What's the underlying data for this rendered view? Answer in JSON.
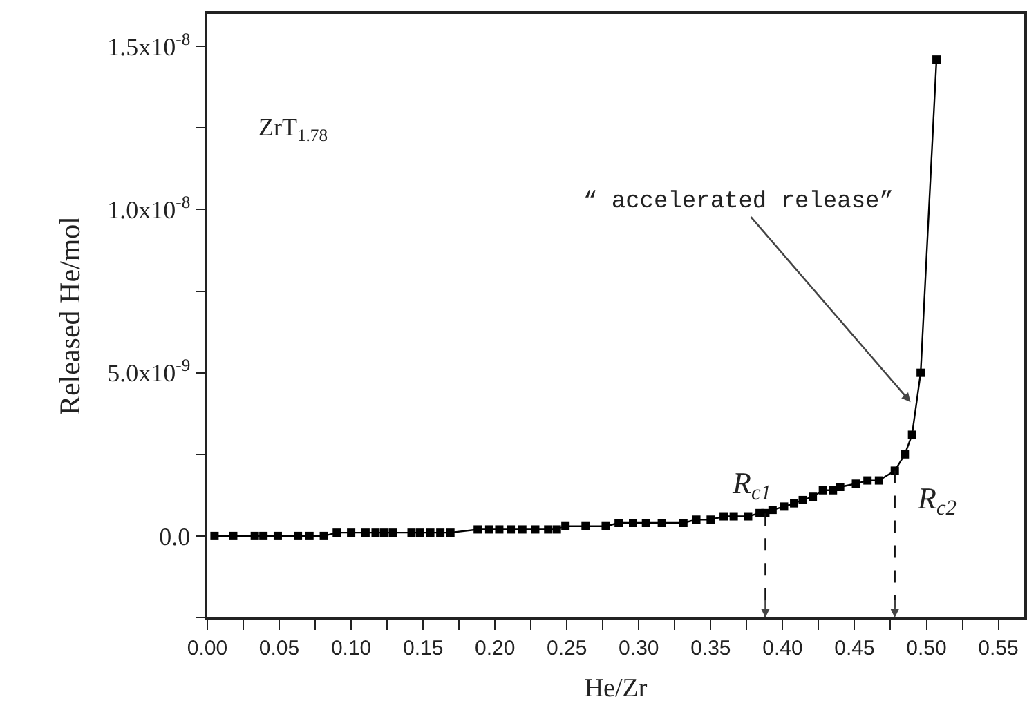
{
  "chart_data": {
    "type": "line",
    "xlabel": "He/Zr",
    "ylabel": "Released He/mol",
    "x": [
      0.005,
      0.018,
      0.033,
      0.039,
      0.049,
      0.063,
      0.071,
      0.081,
      0.09,
      0.1,
      0.11,
      0.117,
      0.123,
      0.129,
      0.142,
      0.148,
      0.155,
      0.162,
      0.169,
      0.188,
      0.196,
      0.203,
      0.211,
      0.219,
      0.228,
      0.237,
      0.243,
      0.249,
      0.263,
      0.277,
      0.286,
      0.296,
      0.305,
      0.316,
      0.331,
      0.34,
      0.35,
      0.359,
      0.366,
      0.376,
      0.384,
      0.388,
      0.393,
      0.401,
      0.408,
      0.414,
      0.421,
      0.428,
      0.435,
      0.44,
      0.451,
      0.459,
      0.467,
      0.478,
      0.485,
      0.49,
      0.496,
      0.507
    ],
    "series": [
      {
        "color": "#000000",
        "values": [
          0,
          0,
          0,
          0,
          0,
          0,
          0,
          0,
          1e-10,
          1e-10,
          1e-10,
          1e-10,
          1e-10,
          1e-10,
          1e-10,
          1e-10,
          1e-10,
          1e-10,
          1e-10,
          2e-10,
          2e-10,
          2e-10,
          2e-10,
          2e-10,
          2e-10,
          2e-10,
          2e-10,
          3e-10,
          3e-10,
          3e-10,
          4e-10,
          4e-10,
          4e-10,
          4e-10,
          4e-10,
          5e-10,
          5e-10,
          6e-10,
          6e-10,
          6e-10,
          7e-10,
          7e-10,
          8e-10,
          9e-10,
          1e-09,
          1.1e-09,
          1.2e-09,
          1.4e-09,
          1.4e-09,
          1.5e-09,
          1.6e-09,
          1.7e-09,
          1.7e-09,
          2e-09,
          2.5e-09,
          3.1e-09,
          5e-09,
          1.46e-08
        ]
      }
    ],
    "xlim": [
      0,
      0.568
    ],
    "xticks": [
      {
        "value": 0,
        "label": "0.00"
      },
      {
        "value": 0.025,
        "label": null
      },
      {
        "value": 0.05,
        "label": "0.05"
      },
      {
        "value": 0.075,
        "label": null
      },
      {
        "value": 0.1,
        "label": "0.10"
      },
      {
        "value": 0.125,
        "label": null
      },
      {
        "value": 0.15,
        "label": "0.15"
      },
      {
        "value": 0.175,
        "label": null
      },
      {
        "value": 0.2,
        "label": "0.20"
      },
      {
        "value": 0.225,
        "label": null
      },
      {
        "value": 0.25,
        "label": "0.25"
      },
      {
        "value": 0.275,
        "label": null
      },
      {
        "value": 0.3,
        "label": "0.30"
      },
      {
        "value": 0.325,
        "label": null
      },
      {
        "value": 0.35,
        "label": "0.35"
      },
      {
        "value": 0.375,
        "label": null
      },
      {
        "value": 0.4,
        "label": "0.40"
      },
      {
        "value": 0.425,
        "label": null
      },
      {
        "value": 0.45,
        "label": "0.45"
      },
      {
        "value": 0.475,
        "label": null
      },
      {
        "value": 0.5,
        "label": "0.50"
      },
      {
        "value": 0.525,
        "label": null
      },
      {
        "value": 0.55,
        "label": "0.55"
      }
    ],
    "ylim": [
      -2.5e-09,
      1.6e-08
    ],
    "yticks": [
      {
        "value": -2.5e-09,
        "label": null
      },
      {
        "value": 0,
        "label": "0.0"
      },
      {
        "value": 2.5e-09,
        "label": null
      },
      {
        "value": 5e-09,
        "label": "5.0x10$^{-9}$"
      },
      {
        "value": 7.5e-09,
        "label": null
      },
      {
        "value": 1e-08,
        "label": "1.0x10$^{-8}$"
      },
      {
        "value": 1.25e-08,
        "label": null
      },
      {
        "value": 1.5e-08,
        "label": "1.5x10$^{-8}$"
      }
    ],
    "marker": "square",
    "line_style": "solid",
    "annotations": [
      "ZrT$_{1.78}$",
      {
        "text": "“ accelerated release”",
        "x": 0.489,
        "y": 4.1e-09
      },
      {
        "text": "R$_{c1}$",
        "x": 0.388,
        "y": 6.9e-10
      },
      {
        "text": "R$_{c2}$",
        "x": 0.478,
        "y": 2e-09
      }
    ]
  }
}
